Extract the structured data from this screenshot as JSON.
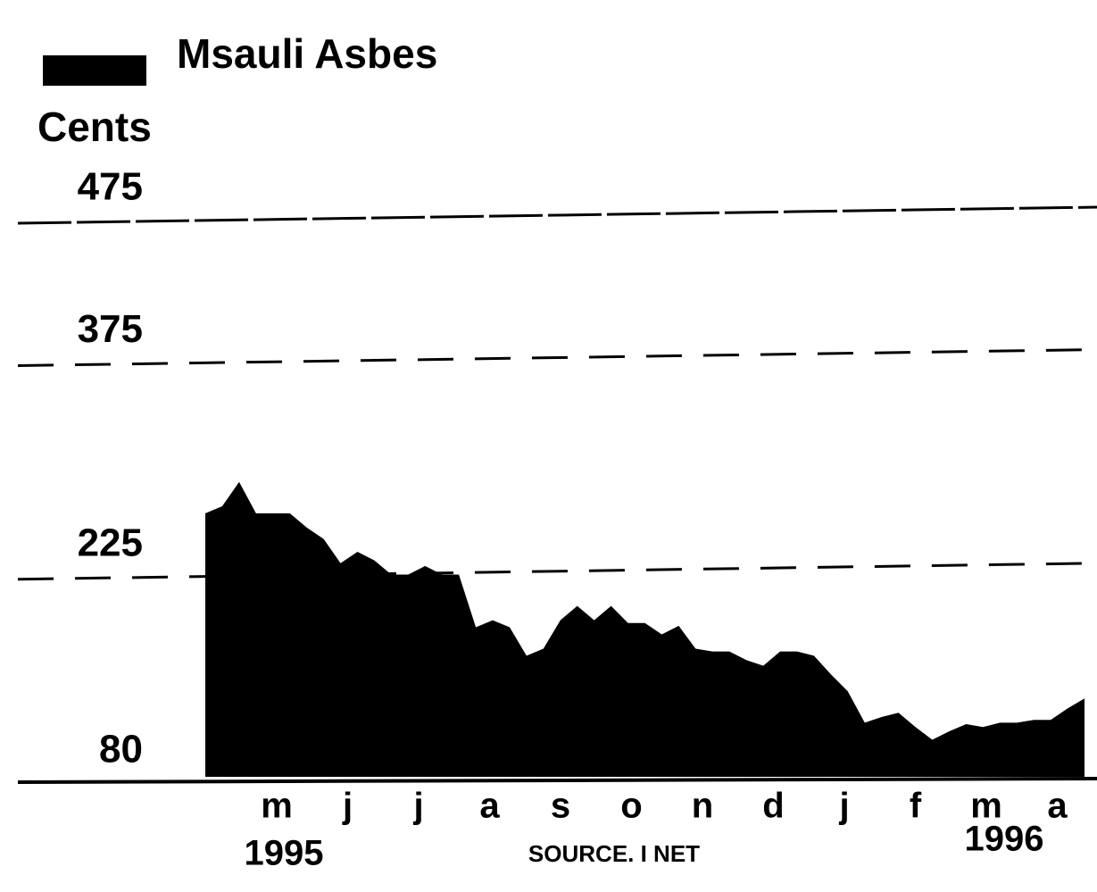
{
  "chart_data": {
    "type": "area",
    "title": "Msauli Asbes",
    "y_label": "Cents",
    "source": "SOURCE. I NET",
    "month_labels": [
      "m",
      "j",
      "j",
      "a",
      "s",
      "o",
      "n",
      "d",
      "j",
      "f",
      "m",
      "a"
    ],
    "year_labels": [
      "1995",
      "1996"
    ],
    "values": [
      265,
      270,
      287,
      265,
      265,
      265,
      255,
      247,
      230,
      238,
      232,
      222,
      222,
      228,
      222,
      222,
      185,
      190,
      185,
      165,
      170,
      190,
      200,
      190,
      200,
      188,
      188,
      180,
      186,
      170,
      168,
      168,
      162,
      158,
      168,
      168,
      165,
      152,
      140,
      118,
      122,
      125,
      115,
      106,
      112,
      117,
      115,
      118,
      118,
      120,
      120,
      128,
      135
    ],
    "color": "#000000",
    "ylim": [
      80,
      475
    ],
    "yticks": [
      80,
      225,
      375,
      475
    ],
    "grid": true
  }
}
